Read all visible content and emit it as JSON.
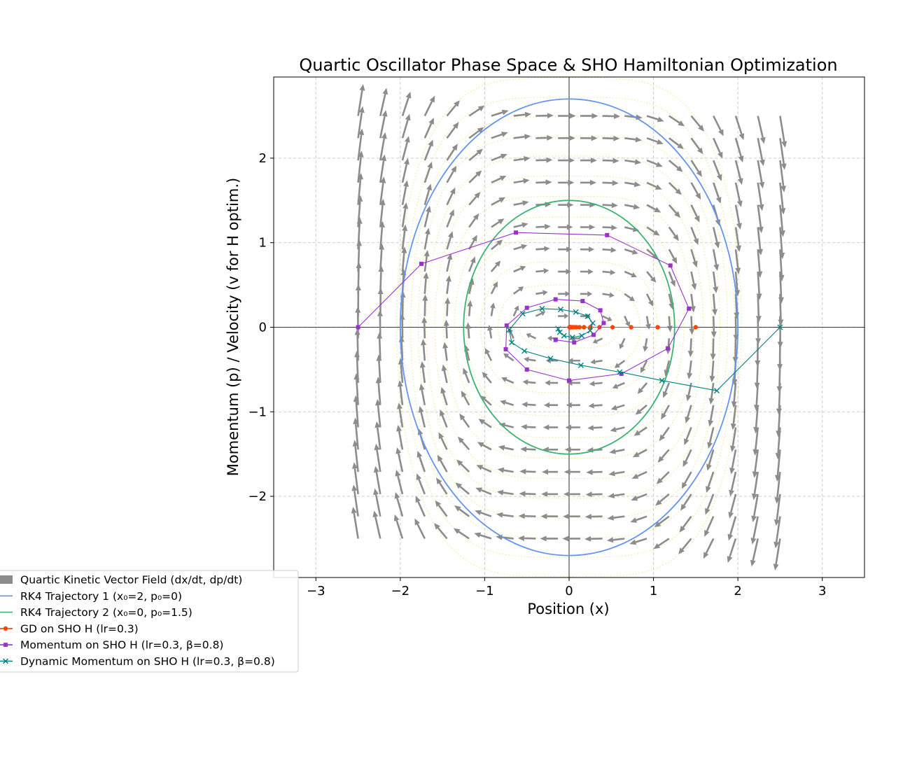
{
  "chart_data": {
    "type": "line",
    "title": "Quartic Oscillator Phase Space & SHO Hamiltonian Optimization",
    "xlabel": "Position (x)",
    "ylabel": "Momentum (p) / Velocity (v for H optim.)",
    "xlim": [
      -3.5,
      3.5
    ],
    "ylim": [
      -2.96,
      2.96
    ],
    "xticks": [
      -3,
      -2,
      -1,
      0,
      1,
      2,
      3
    ],
    "yticks": [
      -2,
      -1,
      0,
      1,
      2
    ],
    "xtick_labels": [
      "−3",
      "−2",
      "−1",
      "0",
      "1",
      "2",
      "3"
    ],
    "ytick_labels": [
      "−2",
      "−1",
      "0",
      "1",
      "2"
    ],
    "grid": true,
    "legend_position": "lower-left",
    "colors": {
      "field": "#8c8c8c",
      "traj1": "#6495ed",
      "traj2": "#3cb371",
      "gd": "#ff4500",
      "momentum": "#9932cc",
      "dynamic": "#008080",
      "contour": "#f0e68c",
      "grid": "#c8c8c8"
    },
    "vector_field": {
      "name": "Quartic Kinetic Vector Field (dx/dt, dp/dt)",
      "x_range": [
        -2.5,
        2.5
      ],
      "p_range": [
        -2.5,
        2.5
      ],
      "grid_n": 20,
      "dxdt": "p",
      "dpdt": "-x^3"
    },
    "hamiltonian_contours": {
      "levels": [
        0.03,
        0.125,
        0.3,
        0.55,
        0.85,
        1.2,
        1.6,
        2.05,
        2.55,
        3.1,
        3.7,
        4.35
      ]
    },
    "series": [
      {
        "name": "RK4 Trajectory 1 (x₀=2, p₀=0)",
        "kind": "ellipse",
        "a": 2.0,
        "b": 2.7
      },
      {
        "name": "RK4 Trajectory 2 (x₀=0, p₀=1.5)",
        "kind": "ellipse",
        "a": 1.25,
        "b": 1.5
      },
      {
        "name": "GD on SHO H (lr=0.3)",
        "x": [
          1.5,
          1.05,
          0.735,
          0.515,
          0.36,
          0.252,
          0.176,
          0.123,
          0.086,
          0.06,
          0.042,
          0.03,
          0.02,
          0.014,
          0.01,
          0.007,
          0.005
        ],
        "y": [
          0,
          0,
          0,
          0,
          0,
          0,
          0,
          0,
          0,
          0,
          0,
          0,
          0,
          0,
          0,
          0,
          0
        ]
      },
      {
        "name": "Momentum on SHO H (lr=0.3, β=0.8)",
        "x": [
          -2.5,
          -1.75,
          -0.63,
          0.45,
          1.2,
          1.42,
          1.17,
          0.62,
          0.0,
          -0.5,
          -0.75,
          -0.74,
          -0.5,
          -0.16,
          0.16,
          0.37,
          0.41,
          0.29,
          0.06,
          -0.16
        ],
        "y": [
          0.0,
          0.75,
          1.12,
          1.09,
          0.73,
          0.22,
          -0.25,
          -0.55,
          -0.63,
          -0.5,
          -0.26,
          0.02,
          0.23,
          0.33,
          0.31,
          0.2,
          0.05,
          -0.09,
          -0.18,
          -0.15
        ]
      },
      {
        "name": "Dynamic Momentum on SHO H (lr=0.3, β=0.8)",
        "x": [
          2.5,
          1.75,
          1.1,
          0.6,
          0.14,
          -0.22,
          -0.53,
          -0.68,
          -0.71,
          -0.55,
          -0.32,
          -0.1,
          0.08,
          0.22,
          0.28,
          0.25,
          0.15,
          0.04,
          -0.06,
          -0.11,
          -0.13
        ],
        "y": [
          0.0,
          -0.75,
          -0.63,
          -0.53,
          -0.45,
          -0.37,
          -0.28,
          -0.18,
          -0.03,
          0.16,
          0.22,
          0.21,
          0.18,
          0.13,
          0.05,
          -0.04,
          -0.1,
          -0.12,
          -0.1,
          -0.06,
          -0.02
        ]
      }
    ],
    "legend": [
      "Quartic Kinetic Vector Field (dx/dt, dp/dt)",
      "RK4 Trajectory 1 (x₀=2, p₀=0)",
      "RK4 Trajectory 2 (x₀=0, p₀=1.5)",
      "GD on SHO H (lr=0.3)",
      "Momentum on SHO H (lr=0.3, β=0.8)",
      "Dynamic Momentum on SHO H (lr=0.3, β=0.8)"
    ]
  }
}
